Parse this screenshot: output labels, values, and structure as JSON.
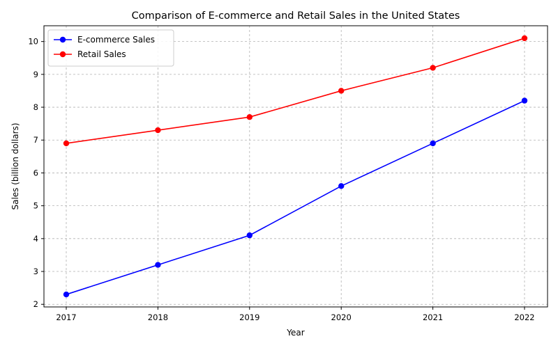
{
  "chart_data": {
    "type": "line",
    "title": "Comparison of E-commerce and Retail Sales in the United States",
    "xlabel": "Year",
    "ylabel": "Sales (billion dollars)",
    "x": [
      "2017",
      "2018",
      "2019",
      "2020",
      "2021",
      "2022"
    ],
    "ylim": [
      1.92,
      10.48
    ],
    "yticks": [
      2,
      3,
      4,
      5,
      6,
      7,
      8,
      9,
      10
    ],
    "grid": true,
    "legend_position": "top-left",
    "series": [
      {
        "name": "E-commerce Sales",
        "color": "#0000ff",
        "values": [
          2.3,
          3.2,
          4.1,
          5.6,
          6.9,
          8.2
        ]
      },
      {
        "name": "Retail Sales",
        "color": "#ff0000",
        "values": [
          6.9,
          7.3,
          7.7,
          8.5,
          9.2,
          10.1
        ]
      }
    ]
  }
}
